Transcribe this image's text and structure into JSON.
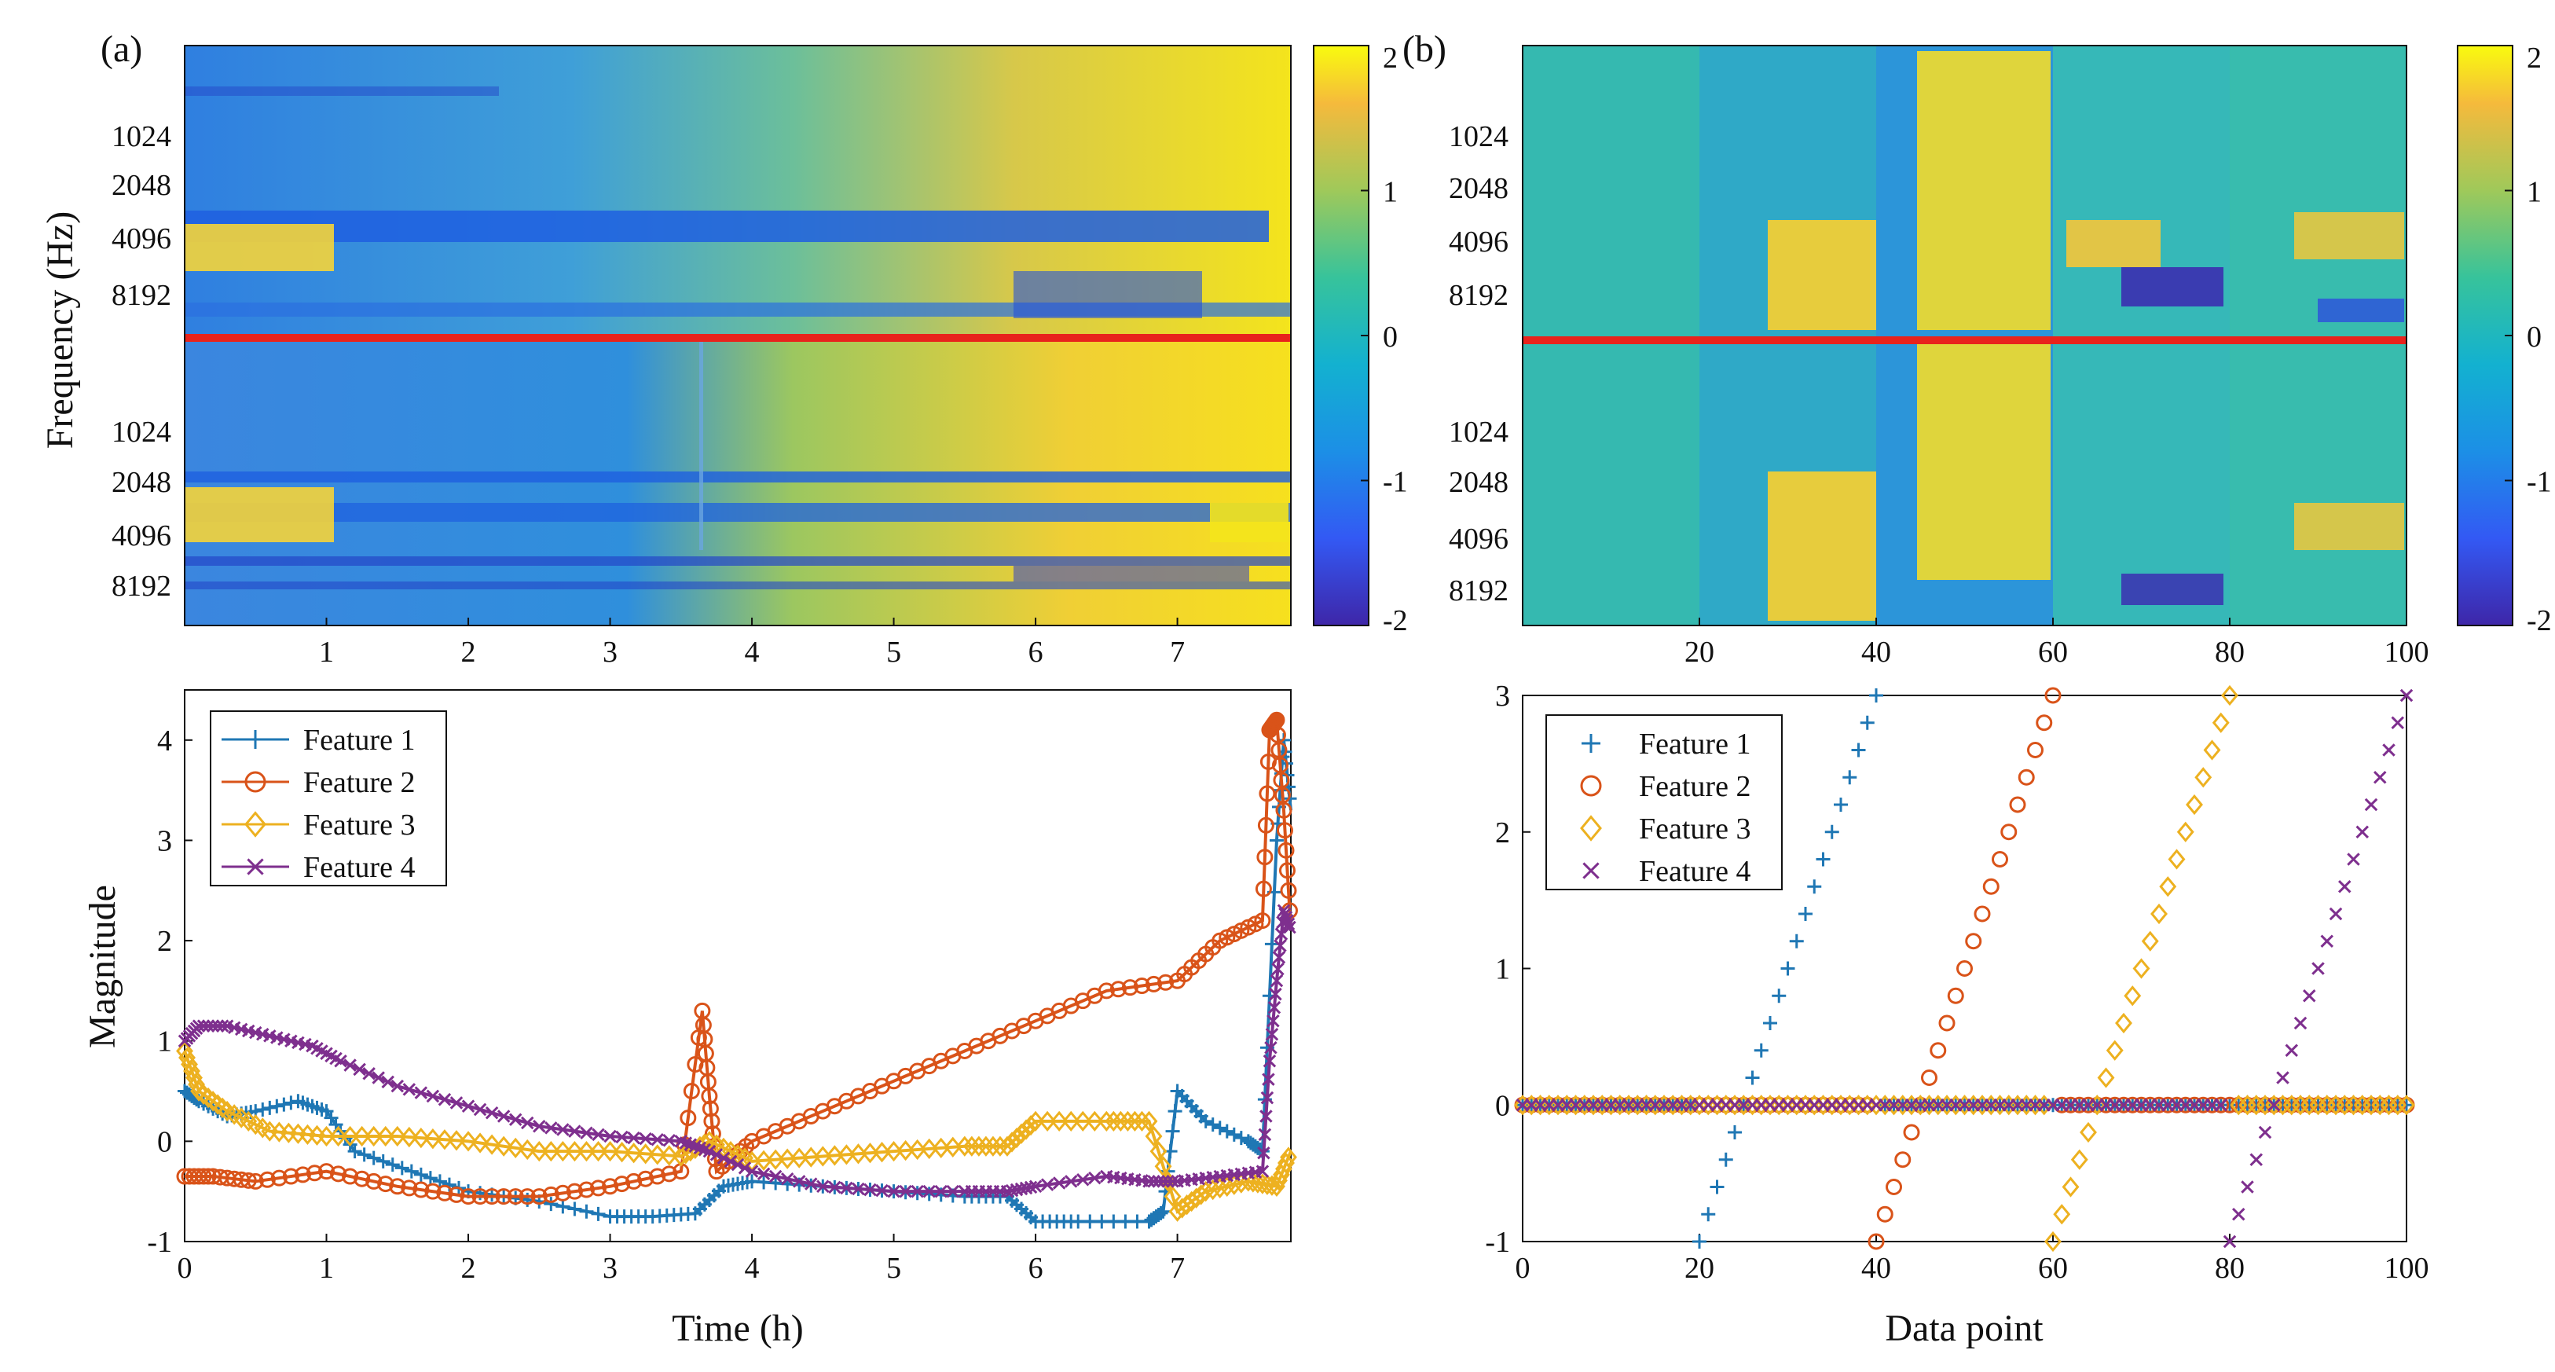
{
  "figure": {
    "panel_a_label": "(a)",
    "panel_b_label": "(b)",
    "colors": {
      "feature1": "#1f77b4",
      "feature2": "#d95319",
      "feature3": "#edb120",
      "feature4": "#7e2f8e",
      "separator": "#e8231c"
    }
  },
  "chart_data": [
    {
      "id": "a-spectrogram",
      "type": "heatmap",
      "title": "",
      "ylabel": "Frequency (Hz)",
      "x_ticks": [
        "1",
        "2",
        "3",
        "4",
        "5",
        "6",
        "7"
      ],
      "xlim": [
        0,
        7.8
      ],
      "y_ticks_top": [
        "1024",
        "2048",
        "4096",
        "8192"
      ],
      "y_ticks_bottom": [
        "1024",
        "2048",
        "4096",
        "8192"
      ],
      "colorbar": {
        "ticks": [
          "2",
          "1",
          "0",
          "-1",
          "-2"
        ],
        "range": [
          -2,
          2
        ]
      }
    },
    {
      "id": "b-spectrogram",
      "type": "heatmap",
      "title": "",
      "x_ticks": [
        "20",
        "40",
        "60",
        "80",
        "100"
      ],
      "xlim": [
        0,
        100
      ],
      "y_ticks_top": [
        "1024",
        "2048",
        "4096",
        "8192"
      ],
      "y_ticks_bottom": [
        "1024",
        "2048",
        "4096",
        "8192"
      ],
      "colorbar": {
        "ticks": [
          "2",
          "1",
          "0",
          "-1",
          "-2"
        ],
        "range": [
          -2,
          2
        ]
      }
    },
    {
      "id": "a-features",
      "type": "line",
      "xlabel": "Time (h)",
      "ylabel": "Magnitude",
      "xlim": [
        0,
        7.8
      ],
      "ylim": [
        -1,
        4.5
      ],
      "x_ticks": [
        "0",
        "1",
        "2",
        "3",
        "4",
        "5",
        "6",
        "7"
      ],
      "y_ticks": [
        "-1",
        "0",
        "1",
        "2",
        "3",
        "4"
      ],
      "legend": [
        "Feature 1",
        "Feature 2",
        "Feature 3",
        "Feature 4"
      ],
      "legend_position": "top-left",
      "series": [
        {
          "name": "Feature 1",
          "marker": "plus",
          "x": [
            0,
            0.1,
            0.3,
            0.5,
            0.8,
            1.0,
            1.2,
            1.6,
            2.0,
            2.5,
            3.0,
            3.3,
            3.6,
            3.8,
            4.0,
            4.5,
            5.0,
            5.5,
            5.8,
            6.0,
            6.3,
            6.8,
            6.9,
            7.0,
            7.2,
            7.5,
            7.6,
            7.7,
            7.75,
            7.8
          ],
          "y": [
            0.5,
            0.4,
            0.25,
            0.3,
            0.4,
            0.3,
            -0.1,
            -0.3,
            -0.5,
            -0.6,
            -0.75,
            -0.75,
            -0.72,
            -0.45,
            -0.4,
            -0.45,
            -0.5,
            -0.55,
            -0.55,
            -0.8,
            -0.8,
            -0.8,
            -0.7,
            0.5,
            0.2,
            0.0,
            -0.1,
            3.0,
            4.0,
            3.3
          ]
        },
        {
          "name": "Feature 2",
          "marker": "circle",
          "x": [
            0,
            0.2,
            0.5,
            1.0,
            1.5,
            2.0,
            2.5,
            3.0,
            3.5,
            3.65,
            3.7,
            3.75,
            4.0,
            4.5,
            5.0,
            5.5,
            6.0,
            6.5,
            7.0,
            7.3,
            7.6,
            7.65,
            7.7,
            7.75,
            7.8
          ],
          "y": [
            -0.35,
            -0.35,
            -0.4,
            -0.3,
            -0.45,
            -0.55,
            -0.55,
            -0.45,
            -0.3,
            1.3,
            0.45,
            -0.3,
            0.0,
            0.3,
            0.6,
            0.9,
            1.2,
            1.5,
            1.6,
            2.0,
            2.2,
            4.1,
            4.2,
            3.3,
            2.1
          ]
        },
        {
          "name": "Feature 3",
          "marker": "diamond",
          "x": [
            0,
            0.1,
            0.3,
            0.6,
            1.0,
            1.5,
            2.0,
            2.5,
            3.0,
            3.5,
            3.7,
            4.0,
            4.5,
            5.0,
            5.5,
            5.8,
            6.0,
            6.5,
            6.8,
            7.0,
            7.2,
            7.5,
            7.7,
            7.8
          ],
          "y": [
            0.9,
            0.5,
            0.3,
            0.1,
            0.05,
            0.05,
            0.0,
            -0.1,
            -0.1,
            -0.15,
            0.0,
            -0.2,
            -0.15,
            -0.1,
            -0.05,
            -0.05,
            0.2,
            0.2,
            0.2,
            -0.7,
            -0.5,
            -0.4,
            -0.45,
            -0.1
          ]
        },
        {
          "name": "Feature 4",
          "marker": "x",
          "x": [
            0,
            0.1,
            0.3,
            0.6,
            0.9,
            1.1,
            1.5,
            2.0,
            2.5,
            3.0,
            3.5,
            3.7,
            4.0,
            4.5,
            5.0,
            5.5,
            5.8,
            6.0,
            6.5,
            6.8,
            7.0,
            7.3,
            7.6,
            7.65,
            7.7,
            7.75,
            7.8
          ],
          "y": [
            1.0,
            1.15,
            1.15,
            1.05,
            0.95,
            0.8,
            0.55,
            0.35,
            0.15,
            0.05,
            0.0,
            -0.1,
            -0.3,
            -0.45,
            -0.5,
            -0.5,
            -0.5,
            -0.45,
            -0.35,
            -0.4,
            -0.4,
            -0.35,
            -0.3,
            0.8,
            1.6,
            2.3,
            2.1
          ]
        }
      ]
    },
    {
      "id": "b-features",
      "type": "scatter",
      "xlabel": "Data point",
      "xlim": [
        0,
        100
      ],
      "ylim": [
        -1,
        3
      ],
      "x_ticks": [
        "0",
        "20",
        "40",
        "60",
        "80",
        "100"
      ],
      "y_ticks": [
        "-1",
        "0",
        "1",
        "2",
        "3"
      ],
      "legend": [
        "Feature 1",
        "Feature 2",
        "Feature 3",
        "Feature 4"
      ],
      "legend_position": "top-left",
      "series": [
        {
          "name": "Feature 1",
          "marker": "plus",
          "ramp_start": 20,
          "ramp_end": 40,
          "baseline": 0,
          "ramp_from": -1,
          "ramp_to": 3
        },
        {
          "name": "Feature 2",
          "marker": "circle",
          "ramp_start": 40,
          "ramp_end": 60,
          "baseline": 0,
          "ramp_from": -1,
          "ramp_to": 3
        },
        {
          "name": "Feature 3",
          "marker": "diamond",
          "ramp_start": 60,
          "ramp_end": 80,
          "baseline": 0,
          "ramp_from": -1,
          "ramp_to": 3
        },
        {
          "name": "Feature 4",
          "marker": "x",
          "ramp_start": 80,
          "ramp_end": 100,
          "baseline": 0,
          "ramp_from": -1,
          "ramp_to": 3
        }
      ]
    }
  ]
}
